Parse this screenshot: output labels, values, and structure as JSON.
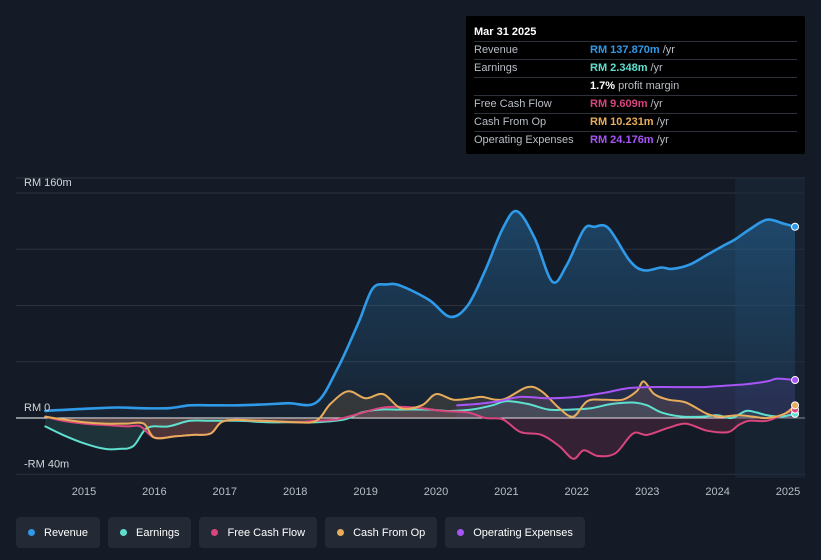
{
  "tooltip": {
    "date": "Mar 31 2025",
    "rows": [
      {
        "label": "Revenue",
        "value": "RM 137.870m",
        "unit": "/yr",
        "color": "#2f9ae8"
      },
      {
        "label": "Earnings",
        "value": "RM 2.348m",
        "unit": "/yr",
        "color": "#5fe0cf"
      },
      {
        "label": "",
        "value": "1.7%",
        "unit": "profit margin",
        "color": "#ffffff"
      },
      {
        "label": "Free Cash Flow",
        "value": "RM 9.609m",
        "unit": "/yr",
        "color": "#d9457d"
      },
      {
        "label": "Cash From Op",
        "value": "RM 10.231m",
        "unit": "/yr",
        "color": "#e8ad5a"
      },
      {
        "label": "Operating Expenses",
        "value": "RM 24.176m",
        "unit": "/yr",
        "color": "#a855f7"
      }
    ]
  },
  "chart_data": {
    "type": "area",
    "y_unit": "RM m",
    "ylim": [
      -40,
      160
    ],
    "y_tick_labels": [
      {
        "value": 160,
        "label": "RM 160m"
      },
      {
        "value": 0,
        "label": "RM 0"
      },
      {
        "value": -40,
        "label": "-RM 40m"
      }
    ],
    "xlim": [
      2014.4,
      2025.25
    ],
    "x_ticks": [
      2015,
      2016,
      2017,
      2018,
      2019,
      2020,
      2021,
      2022,
      2023,
      2024,
      2025
    ],
    "x_tick_labels": [
      "2015",
      "2016",
      "2017",
      "2018",
      "2019",
      "2020",
      "2021",
      "2022",
      "2023",
      "2024",
      "2025"
    ],
    "highlight_from": 2024.25,
    "series": [
      {
        "name": "Revenue",
        "color": "#2f9ae8",
        "points": [
          [
            2014.45,
            5
          ],
          [
            2014.8,
            6
          ],
          [
            2015.2,
            7
          ],
          [
            2015.5,
            7.5
          ],
          [
            2015.8,
            7
          ],
          [
            2016.2,
            7
          ],
          [
            2016.5,
            9
          ],
          [
            2016.8,
            9
          ],
          [
            2017.2,
            9
          ],
          [
            2017.5,
            9.5
          ],
          [
            2017.9,
            10.5
          ],
          [
            2018.3,
            11
          ],
          [
            2018.6,
            35
          ],
          [
            2018.9,
            68
          ],
          [
            2019.1,
            92
          ],
          [
            2019.3,
            95
          ],
          [
            2019.5,
            94
          ],
          [
            2019.9,
            84
          ],
          [
            2020.2,
            72
          ],
          [
            2020.45,
            80
          ],
          [
            2020.7,
            105
          ],
          [
            2020.95,
            135
          ],
          [
            2021.15,
            147
          ],
          [
            2021.4,
            128
          ],
          [
            2021.65,
            97
          ],
          [
            2021.85,
            108
          ],
          [
            2022.1,
            134
          ],
          [
            2022.25,
            136
          ],
          [
            2022.45,
            135
          ],
          [
            2022.75,
            112
          ],
          [
            2022.95,
            105
          ],
          [
            2023.2,
            107
          ],
          [
            2023.35,
            106
          ],
          [
            2023.6,
            109
          ],
          [
            2023.85,
            116
          ],
          [
            2024.1,
            123
          ],
          [
            2024.25,
            127
          ],
          [
            2024.45,
            134
          ],
          [
            2024.7,
            141
          ],
          [
            2024.95,
            138
          ],
          [
            2025.1,
            136
          ]
        ]
      },
      {
        "name": "Earnings",
        "color": "#5fe0cf",
        "points": [
          [
            2014.45,
            -6
          ],
          [
            2014.7,
            -12
          ],
          [
            2015.0,
            -18
          ],
          [
            2015.3,
            -22
          ],
          [
            2015.5,
            -22
          ],
          [
            2015.7,
            -20
          ],
          [
            2015.9,
            -7
          ],
          [
            2016.2,
            -6
          ],
          [
            2016.5,
            -2
          ],
          [
            2016.8,
            -2
          ],
          [
            2017.2,
            -2
          ],
          [
            2017.6,
            -3
          ],
          [
            2018.0,
            -3
          ],
          [
            2018.3,
            -3
          ],
          [
            2018.7,
            -1
          ],
          [
            2018.95,
            4
          ],
          [
            2019.2,
            6
          ],
          [
            2019.5,
            6
          ],
          [
            2019.9,
            6
          ],
          [
            2020.2,
            5
          ],
          [
            2020.5,
            6
          ],
          [
            2020.8,
            9
          ],
          [
            2021.0,
            12
          ],
          [
            2021.3,
            10
          ],
          [
            2021.6,
            6
          ],
          [
            2021.9,
            6
          ],
          [
            2022.2,
            7
          ],
          [
            2022.5,
            10
          ],
          [
            2022.8,
            11
          ],
          [
            2023.0,
            9
          ],
          [
            2023.2,
            4
          ],
          [
            2023.5,
            1
          ],
          [
            2023.8,
            1
          ],
          [
            2024.0,
            2
          ],
          [
            2024.2,
            0
          ],
          [
            2024.4,
            5
          ],
          [
            2024.55,
            4
          ],
          [
            2024.7,
            2
          ],
          [
            2024.9,
            1
          ],
          [
            2025.1,
            3
          ]
        ]
      },
      {
        "name": "Free Cash Flow",
        "color": "#d9457d",
        "points": [
          [
            2014.45,
            1
          ],
          [
            2014.7,
            -2
          ],
          [
            2015.0,
            -4
          ],
          [
            2015.3,
            -5
          ],
          [
            2015.6,
            -6
          ],
          [
            2015.8,
            -6
          ],
          [
            2016.0,
            -14
          ],
          [
            2016.3,
            -13
          ],
          [
            2016.55,
            -12
          ],
          [
            2016.8,
            -11
          ],
          [
            2017.0,
            -2
          ],
          [
            2017.5,
            -2
          ],
          [
            2018.0,
            -3
          ],
          [
            2018.3,
            -2
          ],
          [
            2018.6,
            -1
          ],
          [
            2018.9,
            3
          ],
          [
            2019.2,
            7
          ],
          [
            2019.45,
            8
          ],
          [
            2019.8,
            7
          ],
          [
            2020.1,
            5
          ],
          [
            2020.45,
            4
          ],
          [
            2020.7,
            0
          ],
          [
            2020.95,
            -1
          ],
          [
            2021.2,
            -10
          ],
          [
            2021.5,
            -12
          ],
          [
            2021.75,
            -20
          ],
          [
            2021.95,
            -29
          ],
          [
            2022.1,
            -23
          ],
          [
            2022.3,
            -27
          ],
          [
            2022.55,
            -25
          ],
          [
            2022.8,
            -11
          ],
          [
            2023.0,
            -12
          ],
          [
            2023.3,
            -7
          ],
          [
            2023.55,
            -4
          ],
          [
            2023.85,
            -9
          ],
          [
            2024.15,
            -10
          ],
          [
            2024.3,
            -5
          ],
          [
            2024.45,
            -2
          ],
          [
            2024.7,
            -2
          ],
          [
            2024.95,
            3
          ],
          [
            2025.1,
            6
          ]
        ]
      },
      {
        "name": "Cash From Op",
        "color": "#e8ad5a",
        "points": [
          [
            2014.45,
            1
          ],
          [
            2014.7,
            -1
          ],
          [
            2015.0,
            -3
          ],
          [
            2015.3,
            -4
          ],
          [
            2015.6,
            -4
          ],
          [
            2015.85,
            -4
          ],
          [
            2016.0,
            -14
          ],
          [
            2016.3,
            -13
          ],
          [
            2016.55,
            -12
          ],
          [
            2016.8,
            -11
          ],
          [
            2017.0,
            -2
          ],
          [
            2017.5,
            -2
          ],
          [
            2018.0,
            -3
          ],
          [
            2018.3,
            -2
          ],
          [
            2018.5,
            10
          ],
          [
            2018.75,
            19
          ],
          [
            2019.0,
            14
          ],
          [
            2019.25,
            17
          ],
          [
            2019.5,
            7
          ],
          [
            2019.8,
            9
          ],
          [
            2020.0,
            17
          ],
          [
            2020.25,
            13
          ],
          [
            2020.5,
            14
          ],
          [
            2020.65,
            15
          ],
          [
            2020.85,
            13
          ],
          [
            2021.0,
            14
          ],
          [
            2021.3,
            22
          ],
          [
            2021.5,
            19
          ],
          [
            2021.75,
            7
          ],
          [
            2021.95,
            1
          ],
          [
            2022.15,
            12
          ],
          [
            2022.4,
            13
          ],
          [
            2022.65,
            13
          ],
          [
            2022.85,
            19
          ],
          [
            2022.95,
            26
          ],
          [
            2023.1,
            17
          ],
          [
            2023.3,
            13
          ],
          [
            2023.55,
            11
          ],
          [
            2023.85,
            3
          ],
          [
            2024.05,
            1
          ],
          [
            2024.3,
            2
          ],
          [
            2024.5,
            1
          ],
          [
            2024.7,
            0
          ],
          [
            2024.95,
            3
          ],
          [
            2025.1,
            9
          ]
        ]
      },
      {
        "name": "Operating Expenses",
        "color": "#a855f7",
        "points": [
          [
            2020.3,
            9
          ],
          [
            2020.6,
            10
          ],
          [
            2020.9,
            12
          ],
          [
            2021.2,
            15
          ],
          [
            2021.6,
            14
          ],
          [
            2022.0,
            15
          ],
          [
            2022.4,
            18
          ],
          [
            2022.7,
            21
          ],
          [
            2023.0,
            22
          ],
          [
            2023.4,
            22
          ],
          [
            2023.8,
            22
          ],
          [
            2024.1,
            23
          ],
          [
            2024.4,
            24
          ],
          [
            2024.7,
            26
          ],
          [
            2024.85,
            28
          ],
          [
            2025.1,
            27
          ]
        ]
      }
    ]
  },
  "legend": [
    {
      "label": "Revenue",
      "color": "#2f9ae8"
    },
    {
      "label": "Earnings",
      "color": "#5fe0cf"
    },
    {
      "label": "Free Cash Flow",
      "color": "#d9457d"
    },
    {
      "label": "Cash From Op",
      "color": "#e8ad5a"
    },
    {
      "label": "Operating Expenses",
      "color": "#a855f7"
    }
  ]
}
